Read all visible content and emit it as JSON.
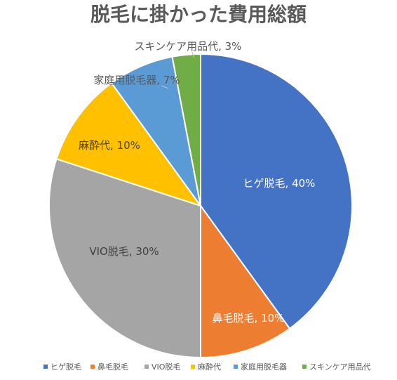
{
  "chart_data": {
    "type": "pie",
    "title": "脱毛に掛かった費用総額",
    "slices": [
      {
        "label": "ヒゲ脱毛",
        "value": 40,
        "value_label": "40%",
        "color": "#4472C4"
      },
      {
        "label": "鼻毛脱毛",
        "value": 10,
        "value_label": "10%",
        "color": "#ED7D31"
      },
      {
        "label": "VIO脱毛",
        "value": 30,
        "value_label": "30%",
        "color": "#A5A5A5"
      },
      {
        "label": "麻酔代",
        "value": 10,
        "value_label": "10%",
        "color": "#FFC000"
      },
      {
        "label": "家庭用脱毛器",
        "value": 7,
        "value_label": "7%",
        "color": "#5B9BD5"
      },
      {
        "label": "スキンケア用品代",
        "value": 3,
        "value_label": "3%",
        "color": "#70AD47"
      }
    ],
    "legend": "bottom"
  }
}
